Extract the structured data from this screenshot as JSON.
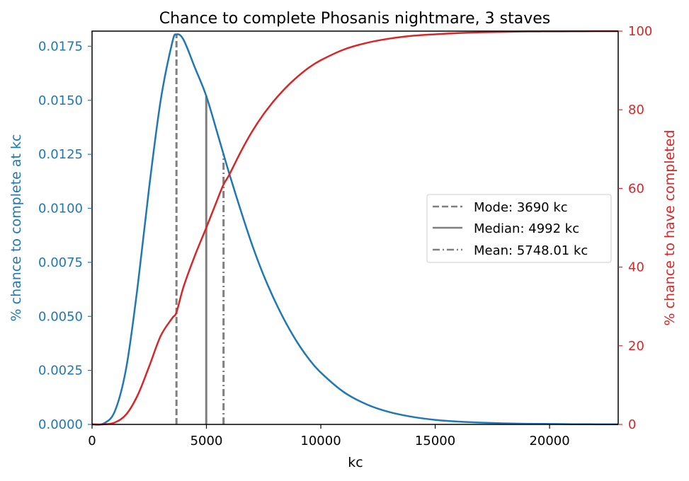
{
  "chart_data": {
    "type": "line",
    "title": "Chance to complete Phosanis nightmare, 3 staves",
    "xlabel": "kc",
    "ylabel_left": "% chance to complete at kc",
    "ylabel_right": "% chance to have completed",
    "xlim": [
      0,
      23000
    ],
    "ylim_left": [
      0,
      0.0182
    ],
    "ylim_right": [
      0,
      100
    ],
    "x_ticks": [
      "0",
      "5000",
      "10000",
      "15000",
      "20000"
    ],
    "y_ticks_left": [
      "0.0000",
      "0.0025",
      "0.0050",
      "0.0075",
      "0.0100",
      "0.0125",
      "0.0150",
      "0.0175"
    ],
    "y_ticks_right": [
      "0",
      "20",
      "40",
      "60",
      "80",
      "100"
    ],
    "grid": false,
    "legend_position": "center right",
    "colors": {
      "left_series": "#1f77b4",
      "right_series": "#d62728",
      "marker_lines": "#7f7f7f",
      "axes": "#000000"
    },
    "series": [
      {
        "axis": "left",
        "x": [
          0,
          500,
          1000,
          1500,
          2000,
          2500,
          3000,
          3500,
          3690,
          4000,
          4500,
          4992,
          5500,
          5748,
          6000,
          6500,
          7000,
          7500,
          8000,
          8500,
          9000,
          9500,
          10000,
          11000,
          12000,
          13000,
          14000,
          15000,
          16000,
          17000,
          18000,
          19000,
          20000,
          21000,
          22000,
          23000
        ],
        "values": [
          0,
          4e-05,
          0.00062,
          0.00265,
          0.00645,
          0.011,
          0.015,
          0.01765,
          0.01805,
          0.0178,
          0.0165,
          0.0152,
          0.0134,
          0.0125,
          0.0116,
          0.0099,
          0.0083,
          0.0069,
          0.0057,
          0.00465,
          0.00375,
          0.003,
          0.0024,
          0.0015,
          0.00093,
          0.00057,
          0.00035,
          0.00021,
          0.00013,
          8e-05,
          5e-05,
          3e-05,
          2e-05,
          1e-05,
          6e-06,
          4e-06
        ]
      },
      {
        "axis": "right",
        "x": [
          0,
          500,
          1000,
          1500,
          2000,
          2500,
          3000,
          3500,
          3690,
          4000,
          4500,
          4992,
          5500,
          5748,
          6000,
          6500,
          7000,
          7500,
          8000,
          8500,
          9000,
          9500,
          10000,
          11000,
          12000,
          13000,
          14000,
          15000,
          16000,
          17000,
          18000,
          19000,
          20000,
          21000,
          22000,
          23000
        ],
        "values": [
          0,
          0.02,
          0.5,
          2.6,
          7.5,
          14.8,
          22.5,
          27.0,
          28.5,
          35.0,
          43.0,
          50.0,
          57.5,
          61.0,
          63.5,
          69.3,
          74.5,
          78.9,
          82.6,
          85.8,
          88.5,
          90.8,
          92.6,
          95.3,
          97.0,
          98.1,
          98.8,
          99.2,
          99.5,
          99.7,
          99.8,
          99.9,
          99.93,
          99.95,
          99.97,
          99.98
        ]
      }
    ],
    "markers": [
      {
        "label": "Mode: 3690 kc",
        "x": 3690,
        "top": 0.01805,
        "style": "dashed"
      },
      {
        "label": "Median: 4992 kc",
        "x": 4992,
        "top": 0.0152,
        "style": "solid"
      },
      {
        "label": "Mean: 5748.01 kc",
        "x": 5748.01,
        "top": 0.0125,
        "style": "dashdot"
      }
    ]
  }
}
